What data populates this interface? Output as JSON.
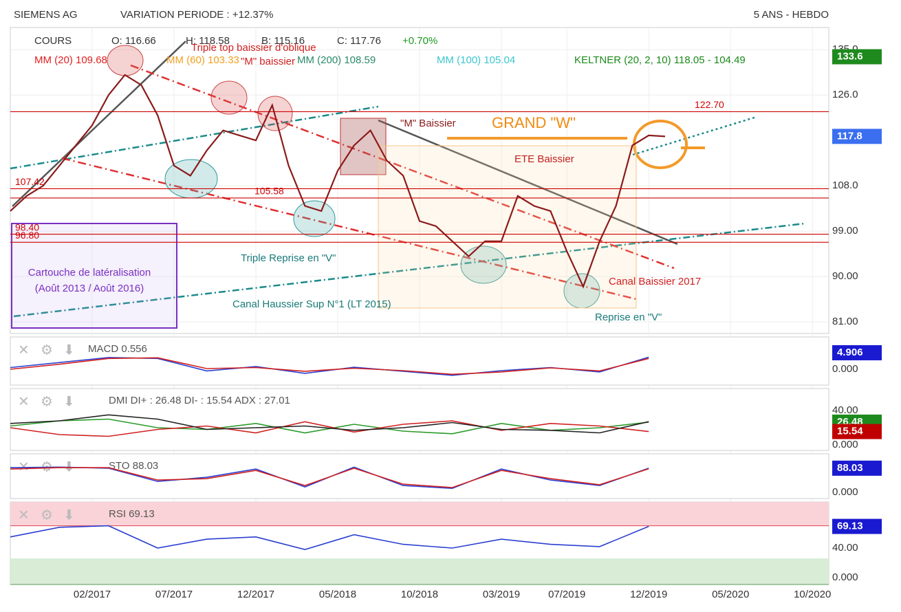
{
  "header": {
    "name": "SIEMENS AG",
    "variation": "VARIATION PERIODE : +12.37%",
    "period": "5 ANS - HEBDO"
  },
  "legend": {
    "cours": "COURS",
    "open": "O: 116.66",
    "high": "H: 118.58",
    "low": "B: 115.16",
    "close": "C: 117.76",
    "change": "+0.70%",
    "mm20": "MM (20)  109.68",
    "mm60": "MM (60)  103.33",
    "mm200": "MM (200)  108.59",
    "mm100": "MM (100)  105.04",
    "keltner": "KELTNER (20, 2, 10)  118.05 - 104.49"
  },
  "annotations": [
    "Triple top baissier d'oblique",
    "\"M\" baissier",
    "\"M\" Baissier",
    "GRAND \"W\"",
    "ETE Baissier",
    "Triple Reprise en \"V\"",
    "Canal Baissier 2017",
    "Cartouche de latéralisation",
    "(Août 2013 / Août 2016)",
    "Canal Haussier Sup N°1 (LT 2015)",
    "Reprise en \"V\""
  ],
  "chart_data": [
    {
      "type": "line",
      "xlim": [
        "2016-09",
        "2020-11"
      ],
      "xticks": [
        {
          "value": "2017-02",
          "label": "02/2017"
        },
        {
          "value": "2017-07",
          "label": "07/2017"
        },
        {
          "value": "2017-12",
          "label": "12/2017"
        },
        {
          "value": "2018-05",
          "label": "05/2018"
        },
        {
          "value": "2018-10",
          "label": "10/2018"
        },
        {
          "value": "2019-03",
          "label": "03/2019"
        },
        {
          "value": "2019-07",
          "label": "07/2019"
        },
        {
          "value": "2019-12",
          "label": "12/2019"
        },
        {
          "value": "2020-05",
          "label": "05/2020"
        },
        {
          "value": "2020-10",
          "label": "10/2020"
        }
      ],
      "ylim": [
        78.7,
        139.4
      ],
      "yticks": [
        {
          "value": 135,
          "label": "135.0"
        },
        {
          "value": 126,
          "label": "126.0"
        },
        {
          "value": 108,
          "label": "108.0"
        },
        {
          "value": 99,
          "label": "99.00"
        },
        {
          "value": 90,
          "label": "90.00"
        },
        {
          "value": 81,
          "label": "81.00"
        }
      ],
      "grid": true,
      "x": [
        "2016-09",
        "2016-10",
        "2016-11",
        "2016-12",
        "2017-01",
        "2017-02",
        "2017-03",
        "2017-04",
        "2017-05",
        "2017-06",
        "2017-07",
        "2017-08",
        "2017-09",
        "2017-10",
        "2017-11",
        "2017-12",
        "2018-01",
        "2018-02",
        "2018-03",
        "2018-04",
        "2018-05",
        "2018-06",
        "2018-07",
        "2018-08",
        "2018-09",
        "2018-10",
        "2018-11",
        "2018-12",
        "2019-01",
        "2019-02",
        "2019-03",
        "2019-04",
        "2019-05",
        "2019-06",
        "2019-07",
        "2019-08",
        "2019-09",
        "2019-10",
        "2019-11",
        "2019-12",
        "2020-01"
      ],
      "series": [
        {
          "name": "COURS",
          "color": "#8b1a1a",
          "values": [
            103,
            106,
            108,
            112,
            116,
            120,
            126,
            130,
            128,
            122,
            112,
            110,
            115,
            119,
            118,
            117,
            124,
            112,
            104,
            103,
            111,
            116,
            119,
            113,
            110,
            101,
            100,
            97,
            94,
            97,
            97,
            106,
            104,
            103,
            95,
            88,
            97,
            104,
            116,
            118,
            117.8
          ]
        }
      ],
      "levels": [
        {
          "value": 122.7,
          "label": "122.70",
          "color": "#d00000"
        },
        {
          "value": 107.42,
          "label": "107.42",
          "color": "#d00000"
        },
        {
          "value": 105.58,
          "label": "105.58",
          "color": "#d00000"
        },
        {
          "value": 98.4,
          "label": "98.40",
          "color": "#d00000"
        },
        {
          "value": 96.8,
          "label": "96.80",
          "color": "#d00000"
        }
      ],
      "badges": [
        {
          "value": 133.6,
          "label": "133.6",
          "color": "#1e8a1e"
        },
        {
          "value": 117.8,
          "label": "117.8",
          "color": "#3b6ff0"
        }
      ]
    },
    {
      "type": "line",
      "title": "MACD  0.556",
      "ylim": [
        -4.7,
        9.6
      ],
      "yticks": [
        {
          "value": 0,
          "label": "0.000"
        }
      ],
      "x": [
        "2016-09",
        "2016-12",
        "2017-03",
        "2017-06",
        "2017-09",
        "2017-12",
        "2018-03",
        "2018-06",
        "2018-09",
        "2018-12",
        "2019-03",
        "2019-06",
        "2019-09",
        "2019-12"
      ],
      "series": [
        {
          "name": "MACD",
          "color": "#2a3fd0",
          "values": [
            0.5,
            2,
            3.5,
            3.2,
            -0.5,
            0.8,
            -1.2,
            0.6,
            -0.6,
            -1.8,
            -0.4,
            0.5,
            -0.8,
            3.6
          ]
        },
        {
          "name": "Signal",
          "color": "#d02020",
          "values": [
            0,
            1.5,
            3.2,
            3.4,
            0.2,
            0.5,
            -0.6,
            0.3,
            -0.4,
            -1.5,
            -0.8,
            0.4,
            -0.5,
            3.2
          ]
        }
      ],
      "badges": [
        {
          "value": 4.906,
          "label": "4.906",
          "color": "#1a1ad0"
        }
      ]
    },
    {
      "type": "line",
      "title": "DMI  DI+ : 26.48  DI- : 15.54  ADX : 27.01",
      "ylim": [
        -6.4,
        65.6
      ],
      "yticks": [
        {
          "value": 40,
          "label": "40.00"
        },
        {
          "value": 0,
          "label": "0.000"
        }
      ],
      "x": [
        "2016-09",
        "2016-12",
        "2017-03",
        "2017-06",
        "2017-09",
        "2017-12",
        "2018-03",
        "2018-06",
        "2018-09",
        "2018-12",
        "2019-03",
        "2019-06",
        "2019-09",
        "2019-12"
      ],
      "series": [
        {
          "name": "DI+",
          "color": "#2a9a2a",
          "values": [
            22,
            28,
            30,
            20,
            18,
            25,
            14,
            24,
            16,
            13,
            25,
            17,
            20,
            26.48
          ]
        },
        {
          "name": "DI-",
          "color": "#d02020",
          "values": [
            20,
            12,
            10,
            18,
            22,
            14,
            27,
            15,
            24,
            28,
            17,
            25,
            22,
            15.54
          ]
        },
        {
          "name": "ADX",
          "color": "#222222",
          "values": [
            25,
            28,
            35,
            30,
            18,
            20,
            22,
            17,
            20,
            26,
            18,
            17,
            14,
            27.01
          ]
        }
      ],
      "badges": [
        {
          "value": 26.48,
          "label": "26.48",
          "color": "#1e8a1e"
        },
        {
          "value": 15.54,
          "label": "15.54",
          "color": "#c00000"
        }
      ]
    },
    {
      "type": "line",
      "title": "STO  88.03",
      "ylim": [
        -22,
        140
      ],
      "yticks": [
        {
          "value": 0,
          "label": "0.000"
        }
      ],
      "x": [
        "2016-09",
        "2016-12",
        "2017-03",
        "2017-06",
        "2017-09",
        "2017-12",
        "2018-03",
        "2018-06",
        "2018-09",
        "2018-12",
        "2019-03",
        "2019-06",
        "2019-09",
        "2019-12"
      ],
      "series": [
        {
          "name": "%K",
          "color": "#2a3fd0",
          "values": [
            90,
            92,
            88,
            40,
            55,
            85,
            20,
            92,
            25,
            15,
            85,
            45,
            25,
            88.03
          ]
        },
        {
          "name": "%D",
          "color": "#d02020",
          "values": [
            85,
            90,
            90,
            45,
            50,
            80,
            25,
            88,
            30,
            18,
            80,
            50,
            28,
            86
          ]
        }
      ],
      "badges": [
        {
          "value": 88.03,
          "label": "88.03",
          "color": "#1a1ad0"
        }
      ]
    },
    {
      "type": "line",
      "title": "RSI  69.13",
      "ylim": [
        -9,
        102
      ],
      "yticks": [
        {
          "value": 40,
          "label": "40.00"
        },
        {
          "value": 0,
          "label": "0.000"
        }
      ],
      "zones": [
        {
          "from": 70,
          "to": 102,
          "color": "#f9d3d8"
        },
        {
          "from": -9,
          "to": 26,
          "color": "#d8ecd6"
        }
      ],
      "x": [
        "2016-09",
        "2016-12",
        "2017-03",
        "2017-06",
        "2017-09",
        "2017-12",
        "2018-03",
        "2018-06",
        "2018-09",
        "2018-12",
        "2019-03",
        "2019-06",
        "2019-09",
        "2019-12"
      ],
      "series": [
        {
          "name": "RSI",
          "color": "#2a3fd0",
          "values": [
            55,
            68,
            70,
            40,
            52,
            55,
            38,
            58,
            45,
            40,
            52,
            45,
            42,
            69.13
          ]
        }
      ],
      "badges": [
        {
          "value": 69.13,
          "label": "69.13",
          "color": "#1a1ad0"
        }
      ]
    }
  ]
}
